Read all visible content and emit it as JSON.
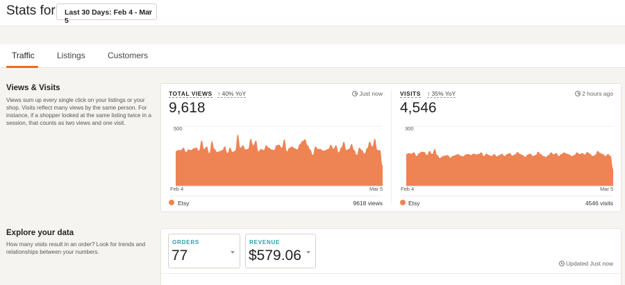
{
  "header": {
    "title": "Stats for",
    "date_range": "Last 30 Days: Feb 4 - Mar 5"
  },
  "tabs": [
    {
      "label": "Traffic",
      "active": true
    },
    {
      "label": "Listings",
      "active": false
    },
    {
      "label": "Customers",
      "active": false
    }
  ],
  "views_visits": {
    "title": "Views & Visits",
    "description": "Views sum up every single click on your listings or your shop. Visits reflect many views by the same person. For instance, if a shopper looked at the same listing twice in a session, that counts as two views and one visit."
  },
  "total_views": {
    "label": "TOTAL VIEWS",
    "yoy": "40% YoY",
    "value": "9,618",
    "updated": "Just now",
    "legend_label": "Etsy",
    "legend_total": "9618 views"
  },
  "visits": {
    "label": "VISITS",
    "yoy": "35% YoY",
    "value": "4,546",
    "updated": "2 hours ago",
    "legend_label": "Etsy",
    "legend_total": "4546 visits"
  },
  "explore": {
    "title": "Explore your data",
    "description": "How many visits result in an order? Look for trends and relationships between your numbers.",
    "orders_label": "ORDERS",
    "orders_value": "77",
    "revenue_label": "REVENUE",
    "revenue_value": "$579.06",
    "updated": "Updated Just now"
  },
  "colors": {
    "accent": "#eb6d20",
    "series": "#ee8353",
    "link": "#2a9db3"
  },
  "icons": [
    "clock-icon",
    "arrow-up-icon",
    "chevron-down-icon"
  ],
  "chart_data": [
    {
      "type": "area",
      "title": "",
      "x_start_label": "Feb 4",
      "x_end_label": "Mar 5",
      "ylim": [
        0,
        500
      ],
      "y_ticks": [
        "500"
      ],
      "series": [
        {
          "name": "Etsy",
          "values": [
            290,
            300,
            300,
            320,
            285,
            305,
            300,
            315,
            320,
            295,
            380,
            310,
            330,
            275,
            375,
            310,
            285,
            290,
            300,
            330,
            275,
            320,
            285,
            295,
            430,
            320,
            340,
            305,
            310,
            395,
            340,
            380,
            290,
            310,
            300,
            340,
            320,
            305,
            300,
            340,
            345,
            320,
            390,
            290,
            320,
            330,
            315,
            305,
            350,
            375,
            390,
            340,
            305,
            260,
            330,
            310,
            310,
            295,
            300,
            310,
            345,
            310,
            340,
            280,
            320,
            370,
            300,
            310,
            350,
            300,
            260,
            320,
            300,
            270,
            315,
            370,
            330,
            395,
            300,
            300,
            170
          ]
        }
      ]
    },
    {
      "type": "area",
      "title": "",
      "x_start_label": "Feb 4",
      "x_end_label": "Mar 5",
      "ylim": [
        0,
        300
      ],
      "y_ticks": [
        "300"
      ],
      "series": [
        {
          "name": "Etsy",
          "values": [
            160,
            165,
            162,
            168,
            150,
            165,
            172,
            170,
            155,
            175,
            160,
            185,
            155,
            140,
            148,
            152,
            155,
            142,
            150,
            155,
            160,
            152,
            148,
            158,
            160,
            155,
            162,
            158,
            160,
            168,
            150,
            162,
            155,
            150,
            160,
            148,
            155,
            162,
            150,
            160,
            165,
            152,
            158,
            170,
            160,
            155,
            145,
            158,
            162,
            150,
            155,
            172,
            160,
            150,
            145,
            155,
            168,
            158,
            165,
            150,
            160,
            168,
            162,
            158,
            150,
            155,
            168,
            160,
            165,
            158,
            170,
            162,
            150,
            155,
            175,
            165,
            160,
            150,
            160,
            150,
            85
          ]
        }
      ]
    }
  ]
}
